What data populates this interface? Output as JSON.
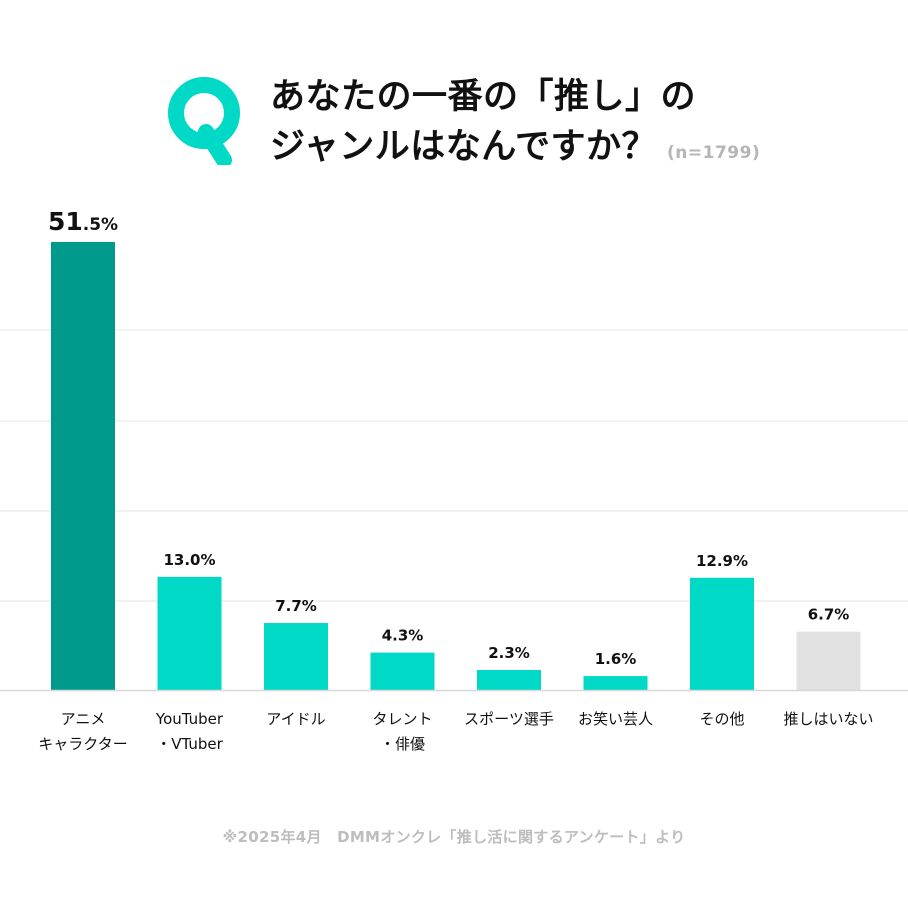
{
  "header": {
    "q_letter": "Q",
    "title_line1": "あなたの一番の「推し」の",
    "title_line2": "ジャンルはなんですか？",
    "sample_size": "(n=1799)"
  },
  "colors": {
    "accent": "#00d9c5",
    "highlight": "#009a8c",
    "neutral": "#e1e1e1",
    "grid": "#e3e3e3",
    "axis": "#d8d8d8",
    "footnote": "#bdbdbd"
  },
  "chart_data": {
    "type": "bar",
    "categories": [
      [
        "アニメ",
        "キャラクター"
      ],
      [
        "YouTuber",
        "・VTuber"
      ],
      [
        "アイドル"
      ],
      [
        "タレント",
        "・俳優"
      ],
      [
        "スポーツ選手"
      ],
      [
        "お笑い芸人"
      ],
      [
        "その他"
      ],
      [
        "推しはいない"
      ]
    ],
    "values": [
      51.5,
      13.0,
      7.7,
      4.3,
      2.3,
      1.6,
      12.9,
      6.7
    ],
    "value_labels": [
      "51.5%",
      "13.0%",
      "7.7%",
      "4.3%",
      "2.3%",
      "1.6%",
      "12.9%",
      "6.7%"
    ],
    "label_style": [
      "large",
      "normal",
      "normal",
      "normal",
      "normal",
      "normal",
      "normal",
      "normal"
    ],
    "bar_colors": [
      "#009a8c",
      "#00d9c5",
      "#00d9c5",
      "#00d9c5",
      "#00d9c5",
      "#00d9c5",
      "#00d9c5",
      "#e1e1e1"
    ],
    "ylim": [
      0,
      55
    ],
    "grid": true,
    "title": "",
    "xlabel": "",
    "ylabel": ""
  },
  "footnote": "※2025年4月　DMMオンクレ「推し活に関するアンケート」より"
}
